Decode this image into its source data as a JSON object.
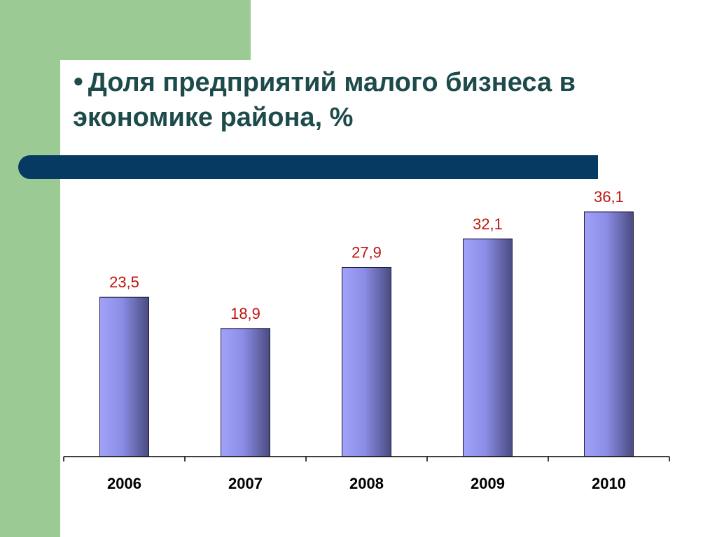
{
  "slide": {
    "bullet": "●",
    "title": "Доля предприятий малого бизнеса в экономике района, %"
  },
  "colors": {
    "background_green": "#9bca95",
    "title_text": "#1d4a4a",
    "header_bar": "#063a62",
    "bar_light": "#9b9cf5",
    "bar_dark": "#4a4b80",
    "value_label": "#c0140f"
  },
  "chart_data": {
    "type": "bar",
    "title": "",
    "xlabel": "",
    "ylabel": "",
    "categories": [
      "2006",
      "2007",
      "2008",
      "2009",
      "2010"
    ],
    "values": [
      23.5,
      18.9,
      27.9,
      32.1,
      36.1
    ],
    "value_labels": [
      "23,5",
      "18,9",
      "27,9",
      "32,1",
      "36,1"
    ],
    "ylim": [
      0,
      36.1
    ],
    "grid": false,
    "legend": "none"
  }
}
